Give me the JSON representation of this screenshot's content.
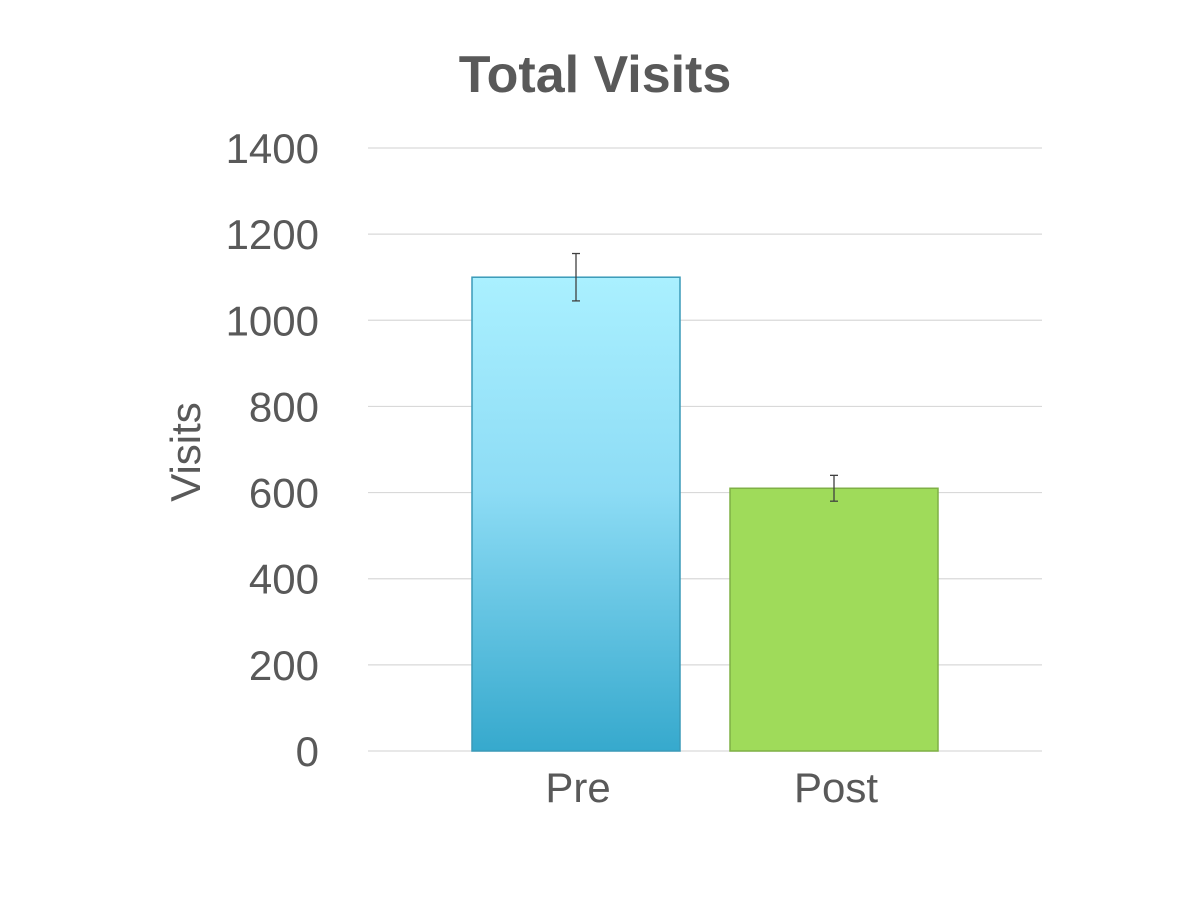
{
  "chart_data": {
    "type": "bar",
    "title": "Total Visits",
    "xlabel": "",
    "ylabel": "Visits",
    "categories": [
      "Pre",
      "Post"
    ],
    "values": [
      1100,
      610
    ],
    "error": [
      55,
      30
    ],
    "ylim": [
      0,
      1400
    ],
    "yticks": [
      "0",
      "200",
      "400",
      "600",
      "800",
      "1000",
      "1200",
      "1400"
    ],
    "grid": true,
    "legend": "none",
    "colors": {
      "Pre": {
        "top": "#aaf0ff",
        "bottom": "#36a9cd",
        "stroke": "#3a9ab8"
      },
      "Post": {
        "fill": "#9fdb5a",
        "stroke": "#7fb045"
      }
    }
  }
}
